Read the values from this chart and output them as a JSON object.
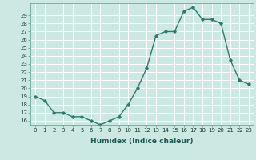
{
  "x": [
    0,
    1,
    2,
    3,
    4,
    5,
    6,
    7,
    8,
    9,
    10,
    11,
    12,
    13,
    14,
    15,
    16,
    17,
    18,
    19,
    20,
    21,
    22,
    23
  ],
  "y": [
    19,
    18.5,
    17,
    17,
    16.5,
    16.5,
    16,
    15.5,
    16,
    16.5,
    18,
    20,
    22.5,
    26.5,
    27,
    27,
    29.5,
    30,
    28.5,
    28.5,
    28,
    23.5,
    21,
    20.5
  ],
  "xlabel": "Humidex (Indice chaleur)",
  "xlim": [
    -0.5,
    23.5
  ],
  "ylim": [
    15.5,
    30.5
  ],
  "ytick_min": 16,
  "ytick_max": 29,
  "xticks": [
    0,
    1,
    2,
    3,
    4,
    5,
    6,
    7,
    8,
    9,
    10,
    11,
    12,
    13,
    14,
    15,
    16,
    17,
    18,
    19,
    20,
    21,
    22,
    23
  ],
  "line_color": "#2d7a6e",
  "bg_color": "#cce8e2",
  "grid_color": "#ffffff",
  "marker": "D",
  "marker_size": 1.8,
  "line_width": 1.0,
  "tick_fontsize": 5.0,
  "xlabel_fontsize": 6.5
}
